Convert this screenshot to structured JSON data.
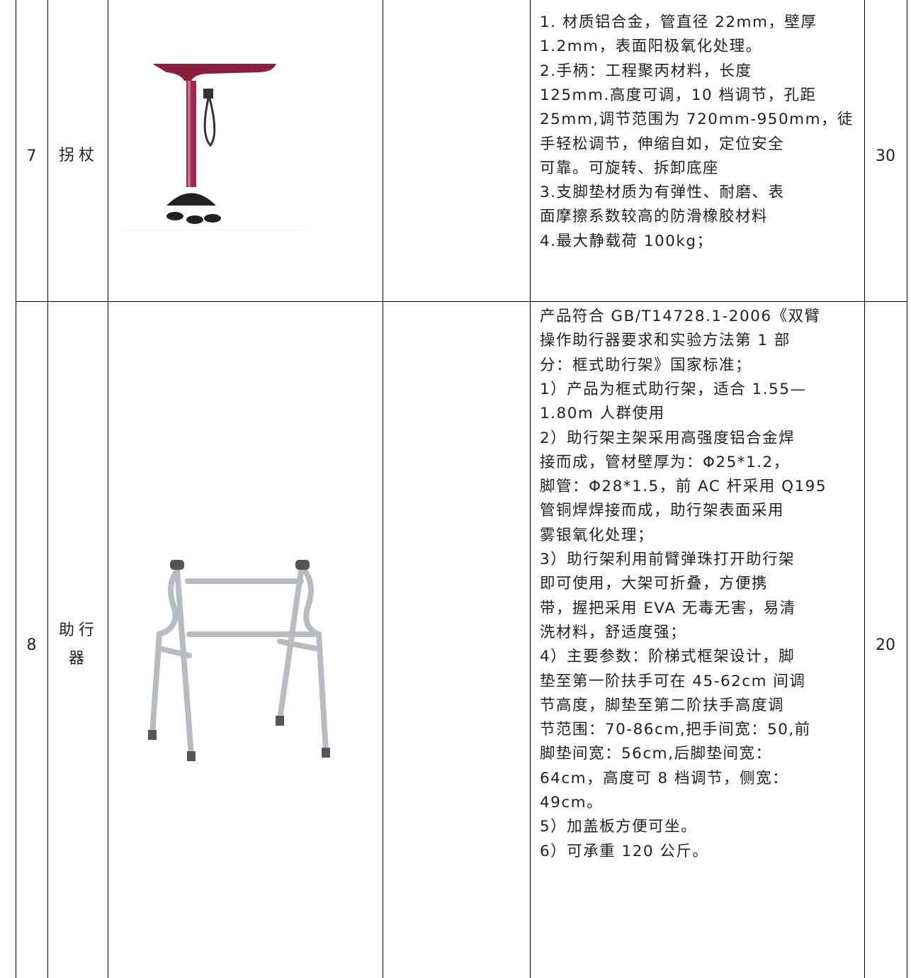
{
  "table": {
    "rows": [
      {
        "number": "7",
        "name": "拐杖",
        "quantity": "30",
        "description": [
          "1. 材质铝合金，管直径 22mm，壁厚",
          "1.2mm，表面阳极氧化处理。",
          "2.手柄：工程聚丙材料，长度",
          "125mm.高度可调，10 档调节，孔距",
          "25mm,调节范围为 720mm-950mm，徒",
          "手轻松调节，伸缩自如，定位安全",
          "可靠。可旋转、拆卸底座",
          "3.支脚垫材质为有弹性、耐磨、表",
          "面摩擦系数较高的防滑橡胶材料",
          "4.最大静载荷 100kg；"
        ]
      },
      {
        "number": "8",
        "name": "助行器",
        "quantity": "20",
        "description": [
          "产品符合 GB/T14728.1-2006《双臂",
          "操作助行器要求和实验方法第 1 部",
          "分：框式助行架》国家标准；",
          "1）产品为框式助行架，适合 1.55—",
          "1.80m 人群使用",
          "2）助行架主架采用高强度铝合金焊",
          "接而成，管材壁厚为：Φ25*1.2，",
          "脚管：Φ28*1.5，前 AC 杆采用 Q195",
          "管铜焊焊接而成，助行架表面采用",
          "雾银氧化处理；",
          "3）助行架利用前臂弹珠打开助行架",
          "即可使用，大架可折叠，方便携",
          "带，握把采用 EVA 无毒无害，易清",
          "洗材料，舒适度强；",
          "4）主要参数：阶梯式框架设计，脚",
          "垫至第一阶扶手可在 45-62cm 间调",
          "节高度，脚垫至第二阶扶手高度调",
          "节范围：70-86cm,把手间宽：50,前",
          "脚垫间宽：56cm,后脚垫间宽：",
          "64cm，高度可 8 档调节，侧宽：",
          "49cm。",
          "5）加盖板方便可坐。",
          "6）可承重 120 公斤。"
        ]
      }
    ]
  }
}
